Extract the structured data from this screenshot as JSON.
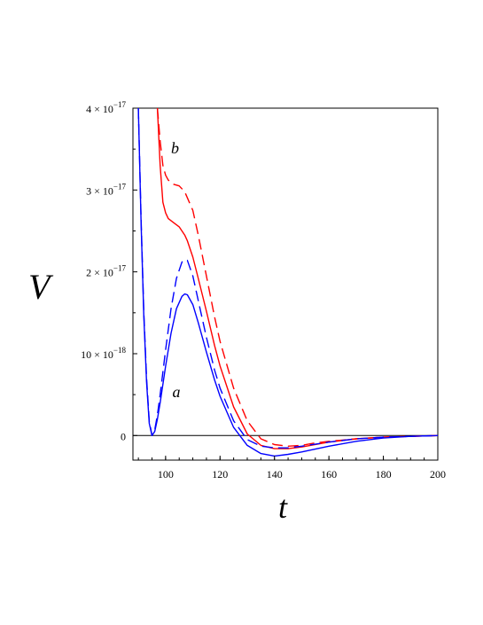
{
  "chart_data": {
    "type": "line",
    "xlabel": "t",
    "ylabel": "V",
    "xlim": [
      88,
      200
    ],
    "ylim": [
      -3e-18,
      4e-17
    ],
    "x_ticks": [
      {
        "value": 100,
        "label": "100"
      },
      {
        "value": 120,
        "label": "120"
      },
      {
        "value": 140,
        "label": "140"
      },
      {
        "value": 160,
        "label": "160"
      },
      {
        "value": 180,
        "label": "180"
      },
      {
        "value": 200,
        "label": "200"
      }
    ],
    "y_ticks": [
      {
        "value": 0,
        "mantissa": "0",
        "exponent": ""
      },
      {
        "value": 1e-17,
        "mantissa": "10 × 10",
        "exponent": "−18"
      },
      {
        "value": 2e-17,
        "mantissa": "2 × 10",
        "exponent": "−17"
      },
      {
        "value": 3e-17,
        "mantissa": "3 × 10",
        "exponent": "−17"
      },
      {
        "value": 4e-17,
        "mantissa": "4 × 10",
        "exponent": "−17"
      }
    ],
    "annotations": [
      {
        "text": "a",
        "x": 102.5,
        "y": 4.7e-18
      },
      {
        "text": "b",
        "x": 102,
        "y": 3.45e-17
      }
    ],
    "grid": false,
    "series": [
      {
        "color": "#ff0000",
        "dash": "solid",
        "x": [
          97,
          98,
          99,
          100,
          101,
          103,
          105,
          107,
          108,
          110,
          112,
          115,
          118,
          120,
          125,
          130,
          135,
          140,
          145,
          150,
          160,
          170,
          180,
          190,
          200
        ],
        "y": [
          4e-17,
          3.3e-17,
          2.85e-17,
          2.72e-17,
          2.65e-17,
          2.6e-17,
          2.55e-17,
          2.45e-17,
          2.38e-17,
          2.18e-17,
          1.92e-17,
          1.52e-17,
          1.1e-17,
          8.5e-18,
          3.5e-18,
          2e-19,
          -1.2e-18,
          -1.6e-18,
          -1.6e-18,
          -1.4e-18,
          -8e-19,
          -4e-19,
          -2e-19,
          -1e-19,
          0
        ]
      },
      {
        "color": "#ff0000",
        "dash": "dashed",
        "x": [
          97,
          98,
          99,
          100,
          101,
          103,
          105,
          107,
          110,
          112,
          115,
          118,
          120,
          125,
          130,
          135,
          140,
          145,
          150,
          155,
          160,
          170,
          180,
          190,
          200
        ],
        "y": [
          4e-17,
          3.6e-17,
          3.3e-17,
          3.18e-17,
          3.12e-17,
          3.07e-17,
          3.05e-17,
          2.98e-17,
          2.75e-17,
          2.45e-17,
          1.95e-17,
          1.45e-17,
          1.15e-17,
          5.8e-18,
          1.8e-18,
          -4e-19,
          -1.1e-18,
          -1.3e-18,
          -1.2e-18,
          -9e-19,
          -7e-19,
          -4e-19,
          -2e-19,
          -1e-19,
          0
        ]
      },
      {
        "color": "#0000ff",
        "dash": "solid",
        "x": [
          90,
          91,
          92,
          93,
          94,
          95,
          96,
          97,
          98,
          100,
          102,
          104,
          106,
          107,
          108,
          110,
          112,
          115,
          118,
          120,
          125,
          130,
          135,
          140,
          145,
          150,
          160,
          170,
          180,
          190,
          200
        ],
        "y": [
          4e-17,
          2.6e-17,
          1.45e-17,
          6.5e-18,
          1.5e-18,
          0,
          5e-19,
          2e-18,
          4e-18,
          8.5e-18,
          1.25e-17,
          1.55e-17,
          1.7e-17,
          1.73e-17,
          1.72e-17,
          1.6e-17,
          1.38e-17,
          1.02e-17,
          6.8e-18,
          4.8e-18,
          1e-18,
          -1.2e-18,
          -2.2e-18,
          -2.5e-18,
          -2.3e-18,
          -2e-18,
          -1.3e-18,
          -7e-19,
          -3e-19,
          -1e-19,
          0
        ]
      },
      {
        "color": "#0000ff",
        "dash": "dashed",
        "x": [
          90,
          91,
          92,
          93,
          94,
          95,
          96,
          97,
          98,
          100,
          102,
          104,
          106,
          107,
          108,
          110,
          112,
          115,
          118,
          120,
          125,
          130,
          135,
          140,
          145,
          150,
          160,
          170,
          180,
          190,
          200
        ],
        "y": [
          4e-17,
          2.65e-17,
          1.5e-17,
          7e-18,
          1.8e-18,
          0,
          7e-19,
          2.5e-18,
          5e-18,
          1.05e-17,
          1.55e-17,
          1.92e-17,
          2.12e-17,
          2.15e-17,
          2.14e-17,
          1.95e-17,
          1.65e-17,
          1.2e-17,
          8e-18,
          5.8e-18,
          1.8e-18,
          -5e-19,
          -1.3e-18,
          -1.5e-18,
          -1.5e-18,
          -1.3e-18,
          -8e-19,
          -4e-19,
          -2e-19,
          -1e-19,
          0
        ]
      }
    ]
  }
}
